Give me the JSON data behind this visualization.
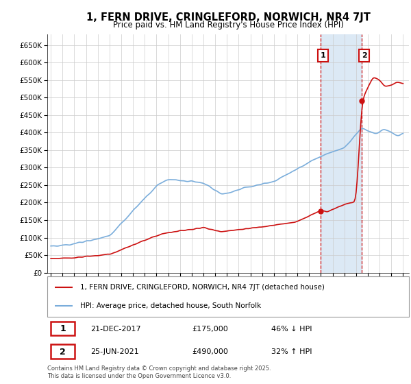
{
  "title": "1, FERN DRIVE, CRINGLEFORD, NORWICH, NR4 7JT",
  "subtitle": "Price paid vs. HM Land Registry's House Price Index (HPI)",
  "ylabel_ticks": [
    "£0",
    "£50K",
    "£100K",
    "£150K",
    "£200K",
    "£250K",
    "£300K",
    "£350K",
    "£400K",
    "£450K",
    "£500K",
    "£550K",
    "£600K",
    "£650K"
  ],
  "ytick_values": [
    0,
    50000,
    100000,
    150000,
    200000,
    250000,
    300000,
    350000,
    400000,
    450000,
    500000,
    550000,
    600000,
    650000
  ],
  "ylim": [
    0,
    680000
  ],
  "xlim_start": 1994.7,
  "xlim_end": 2025.5,
  "hpi_color": "#7aaddb",
  "price_color": "#cc1111",
  "marker1_year": 2017.97,
  "marker1_price": 175000,
  "marker2_year": 2021.48,
  "marker2_price": 490000,
  "annotation1_label": "1",
  "annotation2_label": "2",
  "legend_line1": "1, FERN DRIVE, CRINGLEFORD, NORWICH, NR4 7JT (detached house)",
  "legend_line2": "HPI: Average price, detached house, South Norfolk",
  "table_row1": [
    "1",
    "21-DEC-2017",
    "£175,000",
    "46% ↓ HPI"
  ],
  "table_row2": [
    "2",
    "25-JUN-2021",
    "£490,000",
    "32% ↑ HPI"
  ],
  "footer": "Contains HM Land Registry data © Crown copyright and database right 2025.\nThis data is licensed under the Open Government Licence v3.0.",
  "highlight_color": "#dce9f5",
  "vline_color": "#cc1111",
  "grid_color": "#cccccc",
  "title_fontsize": 10.5,
  "subtitle_fontsize": 8.5
}
